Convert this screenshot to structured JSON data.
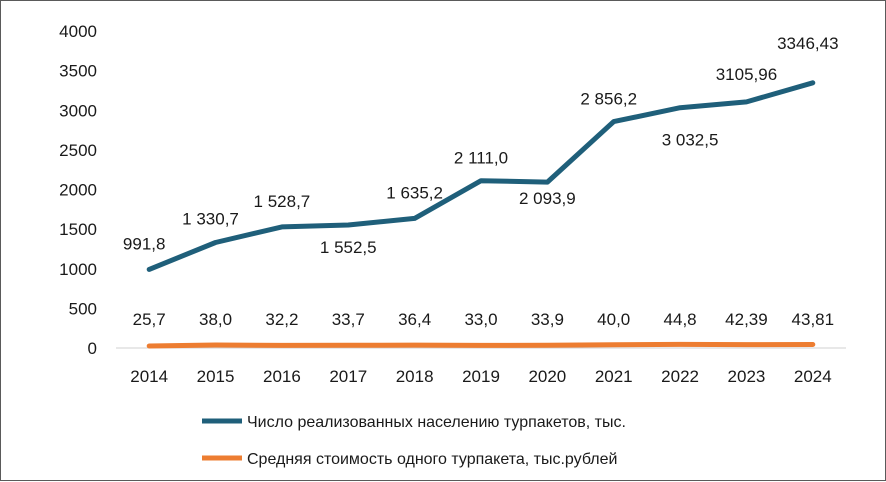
{
  "chart_data": {
    "type": "line",
    "categories": [
      "2014",
      "2015",
      "2016",
      "2017",
      "2018",
      "2019",
      "2020",
      "2021",
      "2022",
      "2023",
      "2024"
    ],
    "ylim": [
      0,
      4000
    ],
    "yticks": [
      "0",
      "500",
      "1000",
      "1500",
      "2000",
      "2500",
      "3000",
      "3500",
      "4000"
    ],
    "grid": false,
    "legend_position": "bottom",
    "series": [
      {
        "name": "Число реализованных населению турпакетов, тыс.",
        "color": "#1f5f7a",
        "values": [
          991.8,
          1330.7,
          1528.7,
          1552.5,
          1635.2,
          2111.0,
          2093.9,
          2856.2,
          3032.5,
          3105.96,
          3346.43
        ],
        "labels": [
          "991,8",
          "1 330,7",
          "1 528,7",
          "1 552,5",
          "1 635,2",
          "2 111,0",
          "2 093,9",
          "2 856,2",
          "3 032,5",
          "3105,96",
          "3346,43"
        ]
      },
      {
        "name": "Средняя стоимость одного турпакета, тыс.рублей",
        "color": "#ed7d31",
        "values": [
          25.7,
          38.0,
          32.2,
          33.7,
          36.4,
          33.0,
          33.9,
          40.0,
          44.8,
          42.39,
          43.81
        ],
        "labels": [
          "25,7",
          "38,0",
          "32,2",
          "33,7",
          "36,4",
          "33,0",
          "33,9",
          "40,0",
          "44,8",
          "42,39",
          "43,81"
        ]
      }
    ]
  }
}
